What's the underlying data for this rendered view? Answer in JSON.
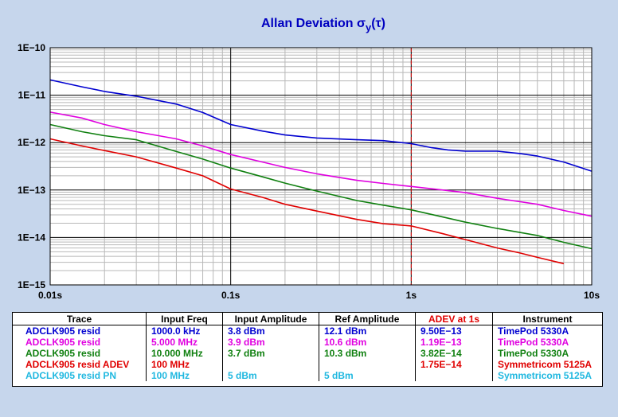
{
  "chart_data": {
    "type": "line",
    "title": "Allan Deviation σ",
    "title_sub": "y",
    "title_suffix": "(τ)",
    "x_scale": "log",
    "y_scale": "log",
    "xlim": [
      0.01,
      10
    ],
    "ylim": [
      1e-15,
      1e-10
    ],
    "x_ticks": [
      {
        "v": 0.01,
        "label": "0.01s"
      },
      {
        "v": 0.1,
        "label": "0.1s"
      },
      {
        "v": 1,
        "label": "1s"
      },
      {
        "v": 10,
        "label": "10s"
      }
    ],
    "y_ticks": [
      {
        "v": 1e-10,
        "label": "1E−10"
      },
      {
        "v": 1e-11,
        "label": "1E−11"
      },
      {
        "v": 1e-12,
        "label": "1E−12"
      },
      {
        "v": 1e-13,
        "label": "1E−13"
      },
      {
        "v": 1e-14,
        "label": "1E−14"
      },
      {
        "v": 1e-15,
        "label": "1E−15"
      }
    ],
    "marker_line": {
      "x": 1,
      "color": "#E00000",
      "style": "dashed"
    },
    "grid": true,
    "series": [
      {
        "name": "ADCLK905 resid",
        "color": "#0000D0",
        "points": [
          [
            0.01,
            2.1e-11
          ],
          [
            0.015,
            1.5e-11
          ],
          [
            0.02,
            1.2e-11
          ],
          [
            0.03,
            9.5e-12
          ],
          [
            0.05,
            6.5e-12
          ],
          [
            0.07,
            4.3e-12
          ],
          [
            0.1,
            2.4e-12
          ],
          [
            0.15,
            1.75e-12
          ],
          [
            0.2,
            1.45e-12
          ],
          [
            0.3,
            1.25e-12
          ],
          [
            0.5,
            1.15e-12
          ],
          [
            0.7,
            1.1e-12
          ],
          [
            1,
            9.5e-13
          ],
          [
            1.3,
            7.8e-13
          ],
          [
            1.6,
            7e-13
          ],
          [
            2,
            6.6e-13
          ],
          [
            3,
            6.6e-13
          ],
          [
            4,
            5.9e-13
          ],
          [
            5,
            5.2e-13
          ],
          [
            7,
            3.9e-13
          ],
          [
            10,
            2.5e-13
          ]
        ]
      },
      {
        "name": "ADCLK905 resid",
        "color": "#E000E0",
        "points": [
          [
            0.01,
            4.4e-12
          ],
          [
            0.015,
            3.3e-12
          ],
          [
            0.02,
            2.4e-12
          ],
          [
            0.03,
            1.7e-12
          ],
          [
            0.05,
            1.2e-12
          ],
          [
            0.07,
            8.5e-13
          ],
          [
            0.1,
            5.6e-13
          ],
          [
            0.15,
            3.9e-13
          ],
          [
            0.2,
            3e-13
          ],
          [
            0.3,
            2.2e-13
          ],
          [
            0.5,
            1.6e-13
          ],
          [
            0.7,
            1.38e-13
          ],
          [
            1,
            1.19e-13
          ],
          [
            1.5,
            1e-13
          ],
          [
            2,
            8.8e-14
          ],
          [
            3,
            6.7e-14
          ],
          [
            5,
            5e-14
          ],
          [
            7,
            3.7e-14
          ],
          [
            10,
            2.8e-14
          ]
        ]
      },
      {
        "name": "ADCLK905 resid",
        "color": "#108010",
        "points": [
          [
            0.01,
            2.4e-12
          ],
          [
            0.015,
            1.7e-12
          ],
          [
            0.02,
            1.4e-12
          ],
          [
            0.03,
            1.15e-12
          ],
          [
            0.05,
            6.5e-13
          ],
          [
            0.07,
            4.5e-13
          ],
          [
            0.1,
            2.9e-13
          ],
          [
            0.15,
            1.9e-13
          ],
          [
            0.2,
            1.4e-13
          ],
          [
            0.3,
            9.5e-14
          ],
          [
            0.5,
            6e-14
          ],
          [
            0.7,
            4.8e-14
          ],
          [
            1,
            3.82e-14
          ],
          [
            1.5,
            2.7e-14
          ],
          [
            2,
            2.1e-14
          ],
          [
            3,
            1.55e-14
          ],
          [
            5,
            1.1e-14
          ],
          [
            7,
            7.9e-15
          ],
          [
            10,
            5.8e-15
          ]
        ]
      },
      {
        "name": "ADCLK905 resid ADEV",
        "color": "#E00000",
        "points": [
          [
            0.01,
            1.2e-12
          ],
          [
            0.015,
            8.5e-13
          ],
          [
            0.02,
            6.8e-13
          ],
          [
            0.03,
            5e-13
          ],
          [
            0.05,
            2.9e-13
          ],
          [
            0.07,
            2e-13
          ],
          [
            0.1,
            1.05e-13
          ],
          [
            0.15,
            7e-14
          ],
          [
            0.2,
            5e-14
          ],
          [
            0.3,
            3.6e-14
          ],
          [
            0.5,
            2.4e-14
          ],
          [
            0.7,
            1.95e-14
          ],
          [
            1,
            1.75e-14
          ],
          [
            1.5,
            1.2e-14
          ],
          [
            2,
            9e-15
          ],
          [
            3,
            6e-15
          ],
          [
            4,
            4.7e-15
          ],
          [
            5,
            3.8e-15
          ],
          [
            7,
            2.8e-15
          ]
        ]
      }
    ]
  },
  "legend": {
    "headers": [
      "Trace",
      "Input Freq",
      "Input Amplitude",
      "Ref Amplitude",
      "ADEV at 1s",
      "Instrument"
    ],
    "adev_header_color": "#E00000",
    "rows": [
      {
        "color": "#0000D0",
        "trace": "ADCLK905 resid",
        "freq": "1000.0 kHz",
        "input_amp": "3.8 dBm",
        "ref_amp": "12.1 dBm",
        "adev": "9.50E−13",
        "instrument": "TimePod 5330A"
      },
      {
        "color": "#E000E0",
        "trace": "ADCLK905 resid",
        "freq": "5.000 MHz",
        "input_amp": "3.9 dBm",
        "ref_amp": "10.6 dBm",
        "adev": "1.19E−13",
        "instrument": "TimePod 5330A"
      },
      {
        "color": "#108010",
        "trace": "ADCLK905 resid",
        "freq": "10.000 MHz",
        "input_amp": "3.7 dBm",
        "ref_amp": "10.3 dBm",
        "adev": "3.82E−14",
        "instrument": "TimePod 5330A"
      },
      {
        "color": "#E00000",
        "trace": "ADCLK905 resid ADEV",
        "freq": "100 MHz",
        "input_amp": "",
        "ref_amp": "",
        "adev": "1.75E−14",
        "instrument": "Symmetricom 5125A"
      },
      {
        "color": "#20B8E0",
        "trace": "ADCLK905 resid PN",
        "freq": "100 MHz",
        "input_amp": "5 dBm",
        "ref_amp": "5 dBm",
        "adev": "",
        "instrument": "Symmetricom 5125A"
      }
    ]
  }
}
